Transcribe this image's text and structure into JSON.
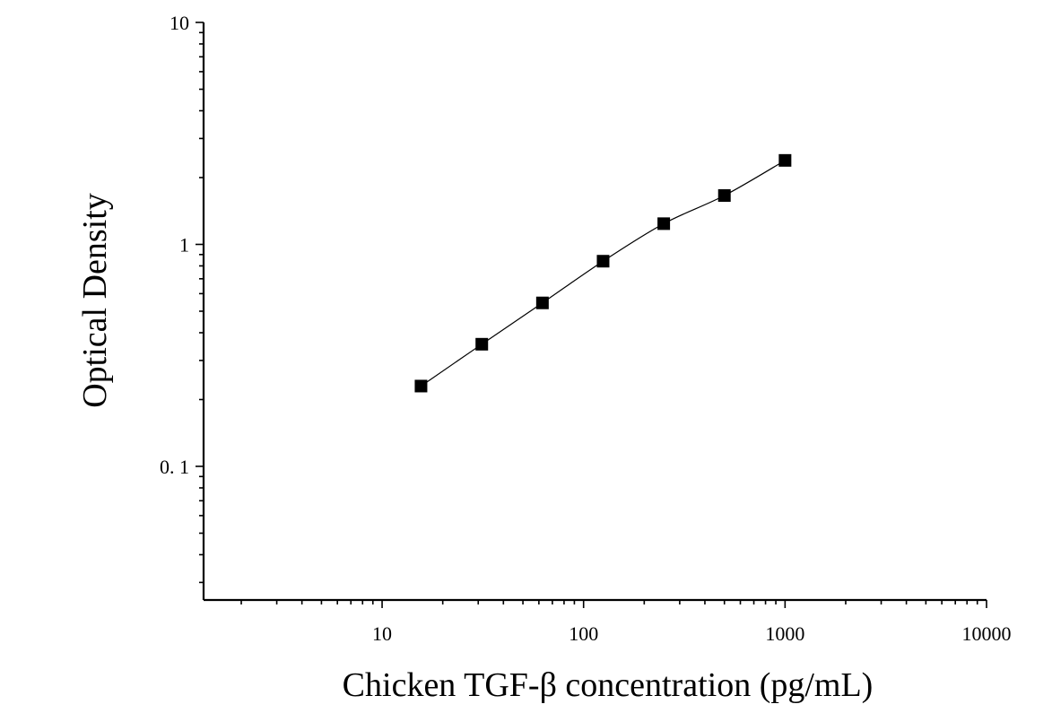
{
  "chart_data": {
    "type": "scatter",
    "title": "",
    "xlabel": "Chicken TGF-β concentration (pg/mL)",
    "ylabel": "Optical Density",
    "xscale": "log",
    "yscale": "log",
    "xlim": [
      1.3,
      10000
    ],
    "ylim": [
      0.025,
      10
    ],
    "x_ticks": [
      10,
      100,
      1000,
      10000
    ],
    "x_tick_labels": [
      "10",
      "100",
      "1000",
      "10000"
    ],
    "y_ticks": [
      0.1,
      1,
      10
    ],
    "y_tick_labels": [
      "0. 1",
      "1",
      "10"
    ],
    "grid": false,
    "legend": "none",
    "series": [
      {
        "marker": "square",
        "color": "#000000",
        "x": [
          15.6,
          31.25,
          62.5,
          125,
          250,
          500,
          1000
        ],
        "y": [
          0.23,
          0.355,
          0.545,
          0.84,
          1.24,
          1.66,
          2.39
        ],
        "fit_curve": true
      }
    ]
  }
}
